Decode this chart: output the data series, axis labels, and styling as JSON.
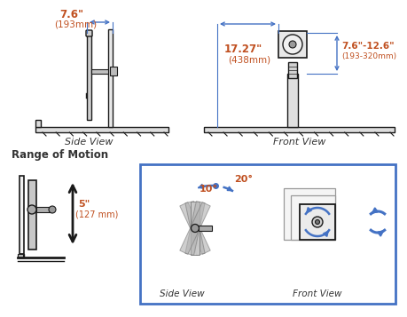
{
  "bg_color": "#ffffff",
  "blue": "#4472C4",
  "orange": "#C05020",
  "dark": "#1a1a1a",
  "gray1": "#cccccc",
  "gray2": "#aaaaaa",
  "gray3": "#888888",
  "label_color": "#333333",
  "side_view_label": "Side View",
  "front_view_label": "Front View",
  "range_of_motion": "Range of Motion",
  "dim_76": "7.6\"",
  "dim_193": "(193mm)",
  "dim_1727": "17.27\"",
  "dim_438": "(438mm)",
  "dim_range": "7.6\"-12.6\"",
  "dim_range2": "(193-320mm)",
  "dim_5": "5\"",
  "dim_127": "(127 mm)",
  "deg_20": "20°",
  "deg_10": "10°"
}
